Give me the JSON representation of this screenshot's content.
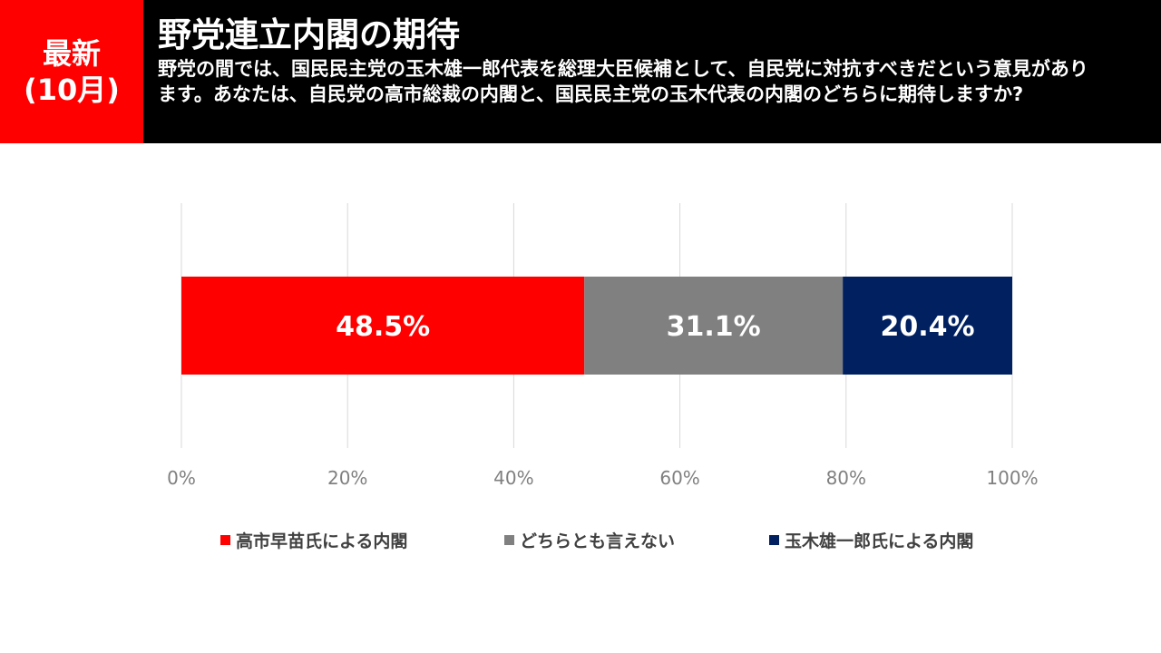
{
  "header": {
    "badge_line1": "最新",
    "badge_line2": "(10月)",
    "title": "野党連立内閣の期待",
    "question": "野党の間では、国民民主党の玉木雄一郎代表を総理大臣候補として、自民党に対抗すべきだという意見があります。あなたは、自民党の高市総裁の内閣と、国民民主党の玉木代表の内閣のどちらに期待しますか?"
  },
  "colors": {
    "header_bg": "#000000",
    "badge_bg": "#ff0000"
  },
  "chart_data": {
    "type": "bar",
    "orientation": "horizontal",
    "stacked": true,
    "percent_stacked": true,
    "categories": [
      ""
    ],
    "series": [
      {
        "name": "高市早苗氏による内閣",
        "values": [
          48.5
        ],
        "label": "48.5%",
        "color": "#ff0000"
      },
      {
        "name": "どちらとも言えない",
        "values": [
          31.1
        ],
        "label": "31.1%",
        "color": "#808080"
      },
      {
        "name": "玉木雄一郎氏による内閣",
        "values": [
          20.4
        ],
        "label": "20.4%",
        "color": "#002060"
      }
    ],
    "xlim": [
      0,
      100
    ],
    "xticks": [
      "0%",
      "20%",
      "40%",
      "60%",
      "80%",
      "100%"
    ],
    "grid": true,
    "legend": "bottom"
  }
}
